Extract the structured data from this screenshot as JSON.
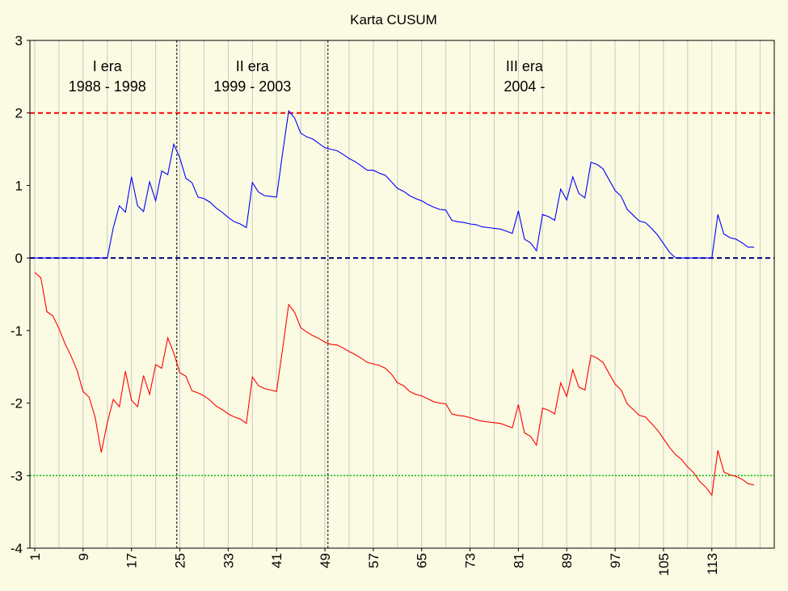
{
  "chart_data": {
    "type": "line",
    "title": "Karta CUSUM",
    "xlabel": "",
    "ylabel": "",
    "xlim": [
      1,
      119
    ],
    "ylim": [
      -4,
      3
    ],
    "x_tick_labels": [
      "1",
      "9",
      "17",
      "25",
      "33",
      "41",
      "49",
      "57",
      "65",
      "73",
      "81",
      "89",
      "97",
      "105",
      "113"
    ],
    "y_tick_labels": [
      "3",
      "2",
      "1",
      "0",
      "-1",
      "-2",
      "-3",
      "-4"
    ],
    "grid": true,
    "annotations": [
      {
        "line1": "I era",
        "line2": "1988 - 1998",
        "x": 13
      },
      {
        "line1": "II era",
        "line2": "1999 - 2003",
        "x": 37
      },
      {
        "line1": "III era",
        "line2": "2004 -",
        "x": 82
      }
    ],
    "vertical_markers": [
      24.5,
      49.5
    ],
    "reference_lines": [
      {
        "value": 2,
        "color": "#ff0000",
        "style": "dashed"
      },
      {
        "value": 0,
        "color": "#000080",
        "style": "dashed"
      },
      {
        "value": -3,
        "color": "#00c000",
        "style": "dotted"
      }
    ],
    "series": [
      {
        "color": "#0000ff",
        "values": [
          0,
          0,
          0,
          0,
          0,
          0,
          0,
          0,
          0,
          0,
          0,
          0,
          0,
          0.42,
          0.72,
          0.63,
          1.12,
          0.72,
          0.64,
          1.05,
          0.79,
          1.2,
          1.15,
          1.57,
          1.38,
          1.1,
          1.04,
          0.84,
          0.82,
          0.77,
          0.69,
          0.63,
          0.56,
          0.5,
          0.47,
          0.42,
          1.04,
          0.91,
          0.86,
          0.85,
          0.84,
          1.45,
          2.03,
          1.93,
          1.72,
          1.67,
          1.64,
          1.58,
          1.52,
          1.5,
          1.48,
          1.43,
          1.37,
          1.33,
          1.27,
          1.21,
          1.21,
          1.17,
          1.14,
          1.05,
          0.96,
          0.92,
          0.86,
          0.82,
          0.79,
          0.74,
          0.7,
          0.67,
          0.66,
          0.52,
          0.5,
          0.49,
          0.47,
          0.46,
          0.43,
          0.42,
          0.41,
          0.4,
          0.37,
          0.34,
          0.65,
          0.26,
          0.21,
          0.1,
          0.6,
          0.57,
          0.52,
          0.95,
          0.8,
          1.12,
          0.89,
          0.83,
          1.32,
          1.29,
          1.23,
          1.08,
          0.93,
          0.85,
          0.67,
          0.59,
          0.51,
          0.49,
          0.41,
          0.32,
          0.2,
          0.08,
          0,
          0,
          0,
          0,
          0,
          0,
          0,
          0.6,
          0.33,
          0.28,
          0.26,
          0.21,
          0.15,
          0.15
        ]
      },
      {
        "color": "#ff0000",
        "values": [
          -0.2,
          -0.27,
          -0.74,
          -0.8,
          -0.97,
          -1.18,
          -1.35,
          -1.55,
          -1.84,
          -1.92,
          -2.2,
          -2.68,
          -2.27,
          -1.95,
          -2.05,
          -1.56,
          -1.96,
          -2.05,
          -1.62,
          -1.88,
          -1.47,
          -1.52,
          -1.1,
          -1.31,
          -1.58,
          -1.63,
          -1.83,
          -1.86,
          -1.9,
          -1.96,
          -2.04,
          -2.09,
          -2.15,
          -2.19,
          -2.22,
          -2.28,
          -1.64,
          -1.76,
          -1.8,
          -1.82,
          -1.84,
          -1.25,
          -0.64,
          -0.75,
          -0.96,
          -1.02,
          -1.07,
          -1.11,
          -1.16,
          -1.19,
          -1.2,
          -1.24,
          -1.29,
          -1.33,
          -1.38,
          -1.44,
          -1.46,
          -1.48,
          -1.52,
          -1.6,
          -1.72,
          -1.76,
          -1.84,
          -1.88,
          -1.9,
          -1.94,
          -1.98,
          -2.0,
          -2.01,
          -2.15,
          -2.17,
          -2.18,
          -2.2,
          -2.23,
          -2.25,
          -2.26,
          -2.27,
          -2.28,
          -2.31,
          -2.34,
          -2.02,
          -2.41,
          -2.46,
          -2.58,
          -2.07,
          -2.1,
          -2.15,
          -1.72,
          -1.91,
          -1.54,
          -1.78,
          -1.82,
          -1.34,
          -1.38,
          -1.44,
          -1.59,
          -1.74,
          -1.82,
          -2.01,
          -2.09,
          -2.17,
          -2.19,
          -2.28,
          -2.37,
          -2.49,
          -2.61,
          -2.71,
          -2.78,
          -2.88,
          -2.96,
          -3.08,
          -3.16,
          -3.27,
          -2.65,
          -2.95,
          -2.99,
          -3.01,
          -3.05,
          -3.11,
          -3.13
        ]
      }
    ]
  }
}
